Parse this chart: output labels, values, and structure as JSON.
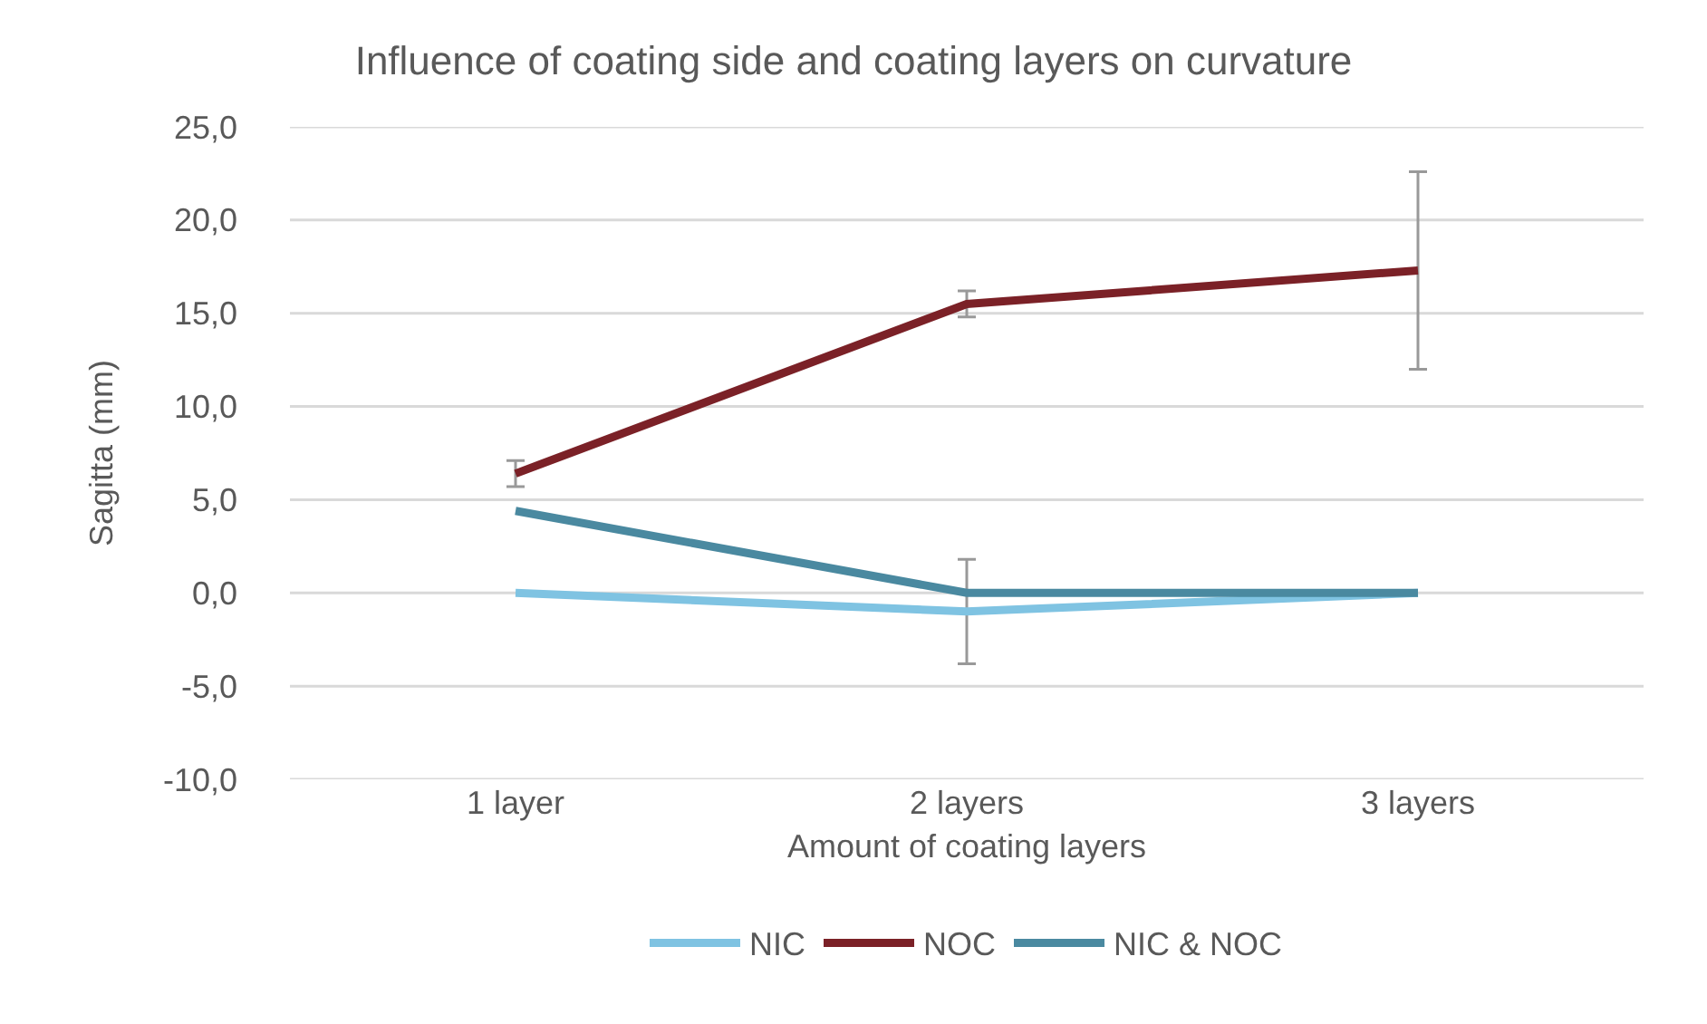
{
  "chart_data": {
    "type": "line",
    "title": "Influence of coating side and coating layers on curvature",
    "xlabel": "Amount of coating layers",
    "ylabel": "Sagitta (mm)",
    "categories": [
      "1 layer",
      "2 layers",
      "3 layers"
    ],
    "series": [
      {
        "name": "NIC",
        "color": "#7fc3e2",
        "values": [
          0,
          -1.0,
          0
        ],
        "errors": [
          null,
          2.8,
          null
        ]
      },
      {
        "name": "NOC",
        "color": "#7b2127",
        "values": [
          6.4,
          15.5,
          17.3
        ],
        "errors": [
          0.7,
          0.7,
          5.3
        ]
      },
      {
        "name": "NIC & NOC",
        "color": "#4a89a0",
        "values": [
          4.4,
          0,
          0
        ]
      }
    ],
    "ylim": [
      -10,
      25
    ],
    "yticks": [
      {
        "value": -10,
        "label": "-10,0"
      },
      {
        "value": -5,
        "label": "-5,0"
      },
      {
        "value": 0,
        "label": "0,0"
      },
      {
        "value": 5,
        "label": "5,0"
      },
      {
        "value": 10,
        "label": "10,0"
      },
      {
        "value": 15,
        "label": "15,0"
      },
      {
        "value": 20,
        "label": "20,0"
      },
      {
        "value": 25,
        "label": "25,0"
      }
    ],
    "grid": "y",
    "legend": "bottom",
    "line_style": "solid"
  }
}
